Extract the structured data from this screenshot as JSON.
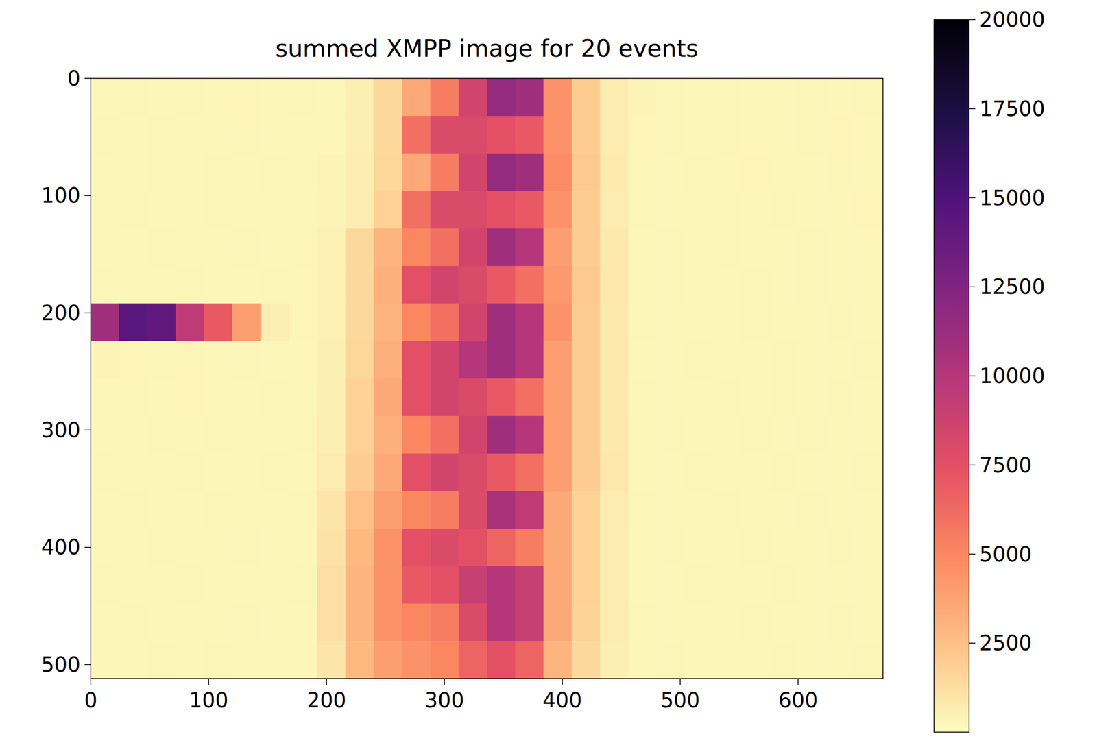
{
  "chart_data": {
    "type": "heatmap",
    "title": "summed XMPP image for 20 events",
    "xlim": [
      0,
      672
    ],
    "ylim": [
      512,
      0
    ],
    "xticks": [
      0,
      100,
      200,
      300,
      400,
      500,
      600
    ],
    "yticks": [
      0,
      100,
      200,
      300,
      400,
      500
    ],
    "x_edges": [
      0,
      24,
      48,
      72,
      96,
      120,
      144,
      168,
      192,
      216,
      240,
      264,
      288,
      312,
      336,
      360,
      384,
      408,
      432,
      456,
      480,
      504,
      528,
      552,
      576,
      600,
      624,
      648,
      672
    ],
    "y_edges": [
      0,
      32,
      64,
      96,
      128,
      160,
      192,
      224,
      256,
      288,
      320,
      352,
      384,
      416,
      448,
      480,
      512
    ],
    "cells": [
      [
        300,
        320,
        290,
        310,
        300,
        330,
        300,
        310,
        300,
        600,
        1500,
        3500,
        5500,
        8500,
        11500,
        11000,
        4500,
        2000,
        700,
        350,
        320,
        300,
        310,
        290,
        300,
        320,
        300,
        310
      ],
      [
        310,
        300,
        320,
        290,
        300,
        310,
        300,
        290,
        300,
        600,
        1500,
        6000,
        8000,
        8000,
        7500,
        7000,
        4500,
        2000,
        700,
        330,
        310,
        300,
        320,
        300,
        290,
        310,
        330,
        300
      ],
      [
        300,
        290,
        310,
        300,
        320,
        300,
        310,
        300,
        350,
        650,
        1600,
        3500,
        5500,
        8500,
        11500,
        11000,
        4800,
        2100,
        750,
        320,
        300,
        310,
        300,
        330,
        300,
        290,
        310,
        300
      ],
      [
        290,
        310,
        300,
        300,
        310,
        290,
        300,
        320,
        350,
        700,
        1800,
        6000,
        8000,
        8000,
        7500,
        7000,
        4500,
        2000,
        700,
        310,
        300,
        300,
        320,
        300,
        310,
        300,
        290,
        340
      ],
      [
        300,
        300,
        310,
        290,
        300,
        320,
        300,
        310,
        500,
        1500,
        3000,
        5000,
        6000,
        8500,
        11000,
        10000,
        4000,
        2000,
        800,
        300,
        320,
        300,
        310,
        300,
        300,
        310,
        300,
        290
      ],
      [
        320,
        300,
        290,
        310,
        300,
        300,
        310,
        300,
        500,
        1500,
        3200,
        7500,
        8500,
        8000,
        7000,
        6000,
        4200,
        2100,
        900,
        300,
        310,
        290,
        300,
        320,
        300,
        310,
        300,
        300
      ],
      [
        11000,
        14500,
        14000,
        9500,
        7000,
        4000,
        600,
        320,
        500,
        1500,
        3000,
        5000,
        6000,
        8500,
        11000,
        10000,
        4500,
        2000,
        800,
        310,
        300,
        300,
        290,
        310,
        300,
        300,
        320,
        300
      ],
      [
        350,
        330,
        320,
        310,
        300,
        310,
        300,
        300,
        550,
        1600,
        3200,
        7500,
        8500,
        10000,
        11000,
        10000,
        4000,
        2000,
        800,
        300,
        300,
        310,
        300,
        290,
        310,
        300,
        300,
        320
      ],
      [
        300,
        310,
        300,
        340,
        300,
        290,
        310,
        300,
        600,
        1800,
        3500,
        7500,
        8500,
        8000,
        7000,
        6000,
        4000,
        2000,
        800,
        310,
        300,
        300,
        310,
        300,
        320,
        300,
        310,
        300
      ],
      [
        300,
        300,
        310,
        300,
        320,
        300,
        300,
        310,
        600,
        1800,
        3200,
        5000,
        6000,
        8500,
        11000,
        10000,
        4000,
        2000,
        800,
        300,
        310,
        300,
        300,
        310,
        300,
        320,
        300,
        300
      ],
      [
        310,
        300,
        300,
        310,
        300,
        300,
        310,
        300,
        700,
        2000,
        3500,
        7500,
        8500,
        8000,
        7000,
        6000,
        4000,
        2000,
        900,
        300,
        300,
        310,
        290,
        300,
        310,
        300,
        300,
        310
      ],
      [
        300,
        310,
        300,
        300,
        310,
        300,
        300,
        320,
        1000,
        2500,
        4000,
        5000,
        5500,
        8000,
        10500,
        9500,
        3500,
        1800,
        700,
        310,
        300,
        300,
        310,
        300,
        300,
        310,
        300,
        300
      ],
      [
        300,
        300,
        310,
        300,
        300,
        310,
        300,
        300,
        1100,
        2800,
        4500,
        7500,
        8000,
        7500,
        6500,
        5500,
        3500,
        1800,
        700,
        300,
        310,
        300,
        300,
        320,
        300,
        300,
        310,
        300
      ],
      [
        310,
        300,
        300,
        310,
        300,
        300,
        300,
        310,
        1200,
        3000,
        4500,
        7000,
        7500,
        9000,
        10000,
        9000,
        3500,
        1800,
        700,
        300,
        300,
        310,
        300,
        300,
        310,
        300,
        300,
        300
      ],
      [
        300,
        310,
        300,
        300,
        300,
        310,
        300,
        300,
        1200,
        3000,
        4500,
        5000,
        5500,
        8000,
        10000,
        9000,
        3500,
        1700,
        700,
        310,
        300,
        300,
        300,
        310,
        300,
        300,
        310,
        300
      ],
      [
        300,
        300,
        310,
        300,
        310,
        300,
        300,
        300,
        1000,
        2800,
        4000,
        4500,
        5000,
        6500,
        7500,
        6500,
        3000,
        1500,
        600,
        300,
        310,
        300,
        300,
        300,
        310,
        300,
        300,
        310
      ]
    ],
    "colorbar_range": [
      0,
      20000
    ],
    "colorbar_ticks": [
      2500,
      5000,
      7500,
      10000,
      12500,
      15000,
      17500,
      20000
    ]
  }
}
